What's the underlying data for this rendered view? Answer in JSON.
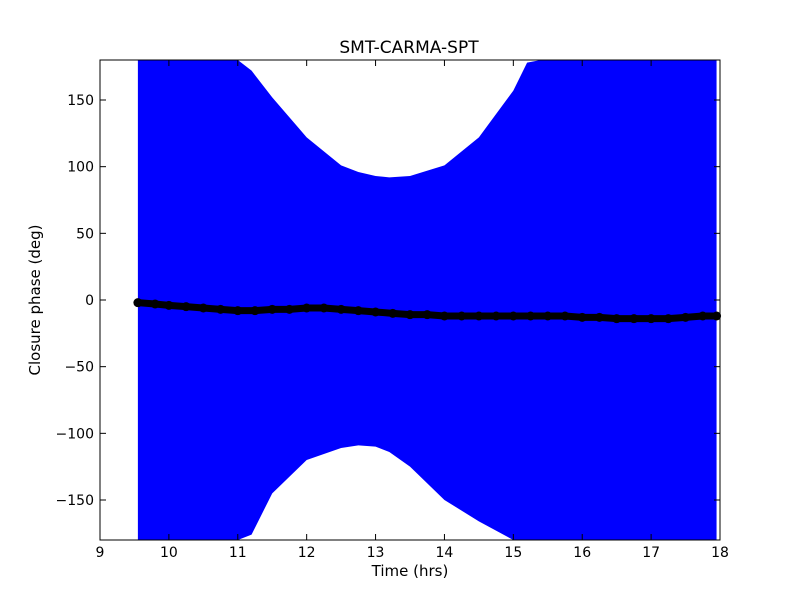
{
  "chart_data": {
    "type": "area",
    "title": "SMT-CARMA-SPT",
    "xlabel": "Time (hrs)",
    "ylabel": "Closure phase (deg)",
    "xlim": [
      9,
      18
    ],
    "ylim": [
      -180,
      180
    ],
    "xticks": [
      9,
      10,
      11,
      12,
      13,
      14,
      15,
      16,
      17,
      18
    ],
    "xtick_labels": [
      "9",
      "10",
      "11",
      "12",
      "13",
      "14",
      "15",
      "16",
      "17",
      "18"
    ],
    "yticks": [
      150,
      100,
      50,
      0,
      -50,
      -100,
      -150
    ],
    "ytick_labels": [
      "150",
      "100",
      "50",
      "0",
      "−50",
      "−100",
      "−150"
    ],
    "grid": false,
    "legend": "none",
    "colors": {
      "band": "#0000ff",
      "points": "#000000",
      "axes": "#000000",
      "background": "#ffffff"
    },
    "series": [
      {
        "kind": "points",
        "x": [
          9.55,
          9.8,
          10.0,
          10.25,
          10.5,
          10.75,
          11.0,
          11.25,
          11.5,
          11.75,
          12.0,
          12.25,
          12.5,
          12.75,
          13.0,
          13.25,
          13.5,
          13.75,
          14.0,
          14.25,
          14.5,
          14.75,
          15.0,
          15.25,
          15.5,
          15.75,
          16.0,
          16.25,
          16.5,
          16.75,
          17.0,
          17.25,
          17.5,
          17.75,
          17.95
        ],
        "y": [
          -2,
          -3,
          -4,
          -5,
          -6,
          -7,
          -8,
          -8,
          -7,
          -7,
          -6,
          -6,
          -7,
          -8,
          -9,
          -10,
          -11,
          -11,
          -12,
          -12,
          -12,
          -12,
          -12,
          -12,
          -12,
          -12,
          -13,
          -13,
          -14,
          -14,
          -14,
          -14,
          -13,
          -12,
          -12
        ]
      },
      {
        "kind": "error-band",
        "x": [
          9.55,
          10.0,
          10.5,
          11.0,
          11.2,
          11.5,
          12.0,
          12.5,
          12.75,
          13.0,
          13.2,
          13.5,
          14.0,
          14.5,
          15.0,
          15.2,
          15.4,
          15.6,
          16.0,
          16.5,
          17.0,
          17.5,
          17.95
        ],
        "upper": [
          180,
          180,
          180,
          180,
          172,
          152,
          122,
          101,
          96,
          93,
          92,
          93,
          101,
          122,
          157,
          178,
          180,
          180,
          180,
          180,
          180,
          180,
          180
        ],
        "lower": [
          -180,
          -180,
          -180,
          -180,
          -180,
          -180,
          -180,
          -180,
          -180,
          -180,
          -180,
          -180,
          -180,
          -180,
          -180,
          -180,
          -180,
          -180,
          -180,
          -180,
          -180,
          -180,
          -180
        ],
        "inner_upper": [
          180,
          180,
          180,
          180,
          180,
          180,
          180,
          180,
          180,
          180,
          180,
          180,
          180,
          180,
          180,
          180,
          180,
          180,
          180,
          180,
          180,
          180,
          180
        ],
        "inner_lower": [
          -180,
          -180,
          -180,
          -180,
          -176,
          -145,
          -120,
          -111,
          -109,
          -110,
          -114,
          -125,
          -150,
          -166,
          -180,
          -180,
          -180,
          -180,
          -180,
          -180,
          -180,
          -180,
          -180
        ]
      }
    ]
  }
}
